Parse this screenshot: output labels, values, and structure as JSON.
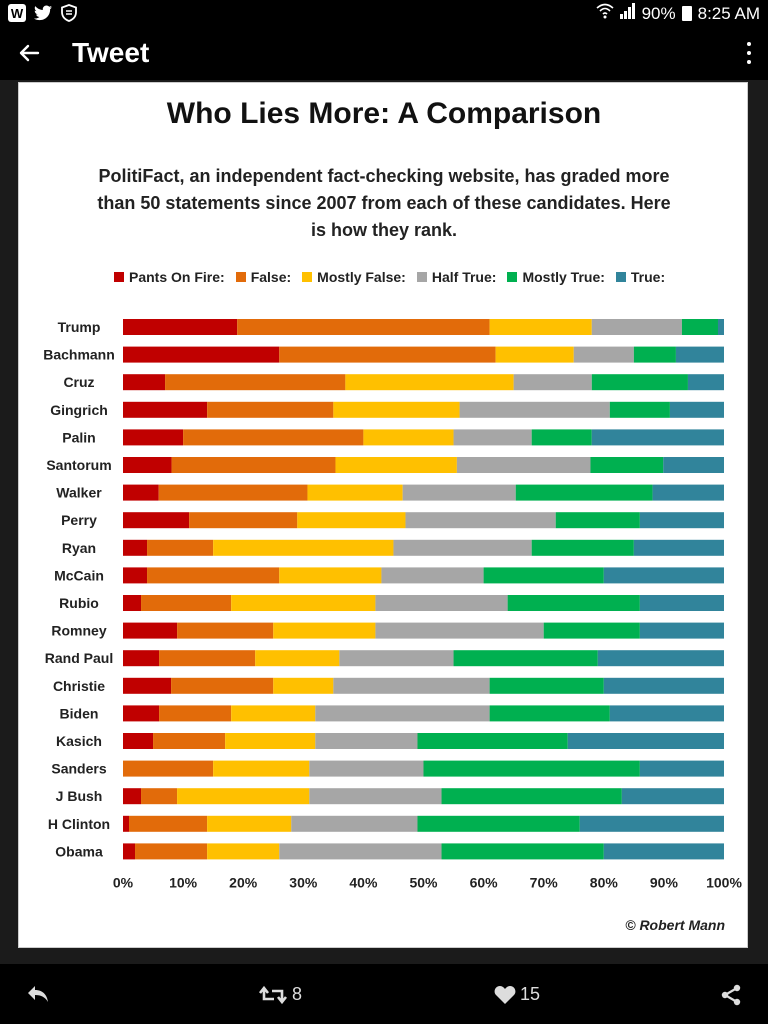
{
  "status_bar": {
    "left_icons": [
      "w-app-icon",
      "twitter-icon",
      "shield-icon"
    ],
    "battery": "90%",
    "time": "8:25 AM"
  },
  "app_bar": {
    "title": "Tweet"
  },
  "chart_data": {
    "type": "bar",
    "orientation": "horizontal",
    "stacked": true,
    "normalized": true,
    "title": "Who Lies More: A Comparison",
    "subtitle": "PolitiFact, an independent fact-checking website, has graded more than 50 statements since 2007 from each of these candidates. Here is how they rank.",
    "legend_position": "top",
    "xlim": [
      0,
      100
    ],
    "xticks": [
      "0%",
      "10%",
      "20%",
      "30%",
      "40%",
      "50%",
      "60%",
      "70%",
      "80%",
      "90%",
      "100%"
    ],
    "grid": false,
    "categories": [
      "Trump",
      "Bachmann",
      "Cruz",
      "Gingrich",
      "Palin",
      "Santorum",
      "Walker",
      "Perry",
      "Ryan",
      "McCain",
      "Rubio",
      "Romney",
      "Rand Paul",
      "Christie",
      "Biden",
      "Kasich",
      "Sanders",
      "J Bush",
      "H Clinton",
      "Obama"
    ],
    "series": [
      {
        "name": "Pants On Fire:",
        "color": "#c00000",
        "values": [
          19,
          26,
          7,
          14,
          10,
          8,
          6,
          11,
          4,
          4,
          3,
          9,
          6,
          8,
          6,
          5,
          0,
          3,
          1,
          2
        ]
      },
      {
        "name": "False:",
        "color": "#e26b0a",
        "values": [
          42,
          36,
          30,
          21,
          30,
          27,
          25,
          18,
          11,
          22,
          15,
          16,
          16,
          17,
          12,
          12,
          15,
          6,
          13,
          12
        ]
      },
      {
        "name": "Mostly False:",
        "color": "#ffc000",
        "values": [
          17,
          13,
          28,
          21,
          15,
          20,
          16,
          18,
          30,
          17,
          24,
          17,
          14,
          10,
          14,
          15,
          16,
          22,
          14,
          12
        ]
      },
      {
        "name": "Half True:",
        "color": "#a6a6a6",
        "values": [
          15,
          10,
          13,
          25,
          13,
          22,
          19,
          25,
          23,
          17,
          22,
          28,
          19,
          26,
          29,
          17,
          19,
          22,
          21,
          27
        ]
      },
      {
        "name": "Mostly True:",
        "color": "#00b050",
        "values": [
          6,
          7,
          16,
          10,
          10,
          12,
          23,
          14,
          17,
          20,
          22,
          16,
          24,
          19,
          20,
          25,
          36,
          30,
          27,
          27
        ]
      },
      {
        "name": "True:",
        "color": "#31849b",
        "values": [
          1,
          8,
          6,
          9,
          22,
          10,
          12,
          14,
          15,
          20,
          14,
          14,
          21,
          20,
          19,
          26,
          14,
          17,
          24,
          20
        ]
      }
    ],
    "credit": "© Robert Mann"
  },
  "bottom_bar": {
    "reply_icon": "reply-icon",
    "retweet_count": "8",
    "like_count": "15",
    "share_icon": "share-icon"
  }
}
